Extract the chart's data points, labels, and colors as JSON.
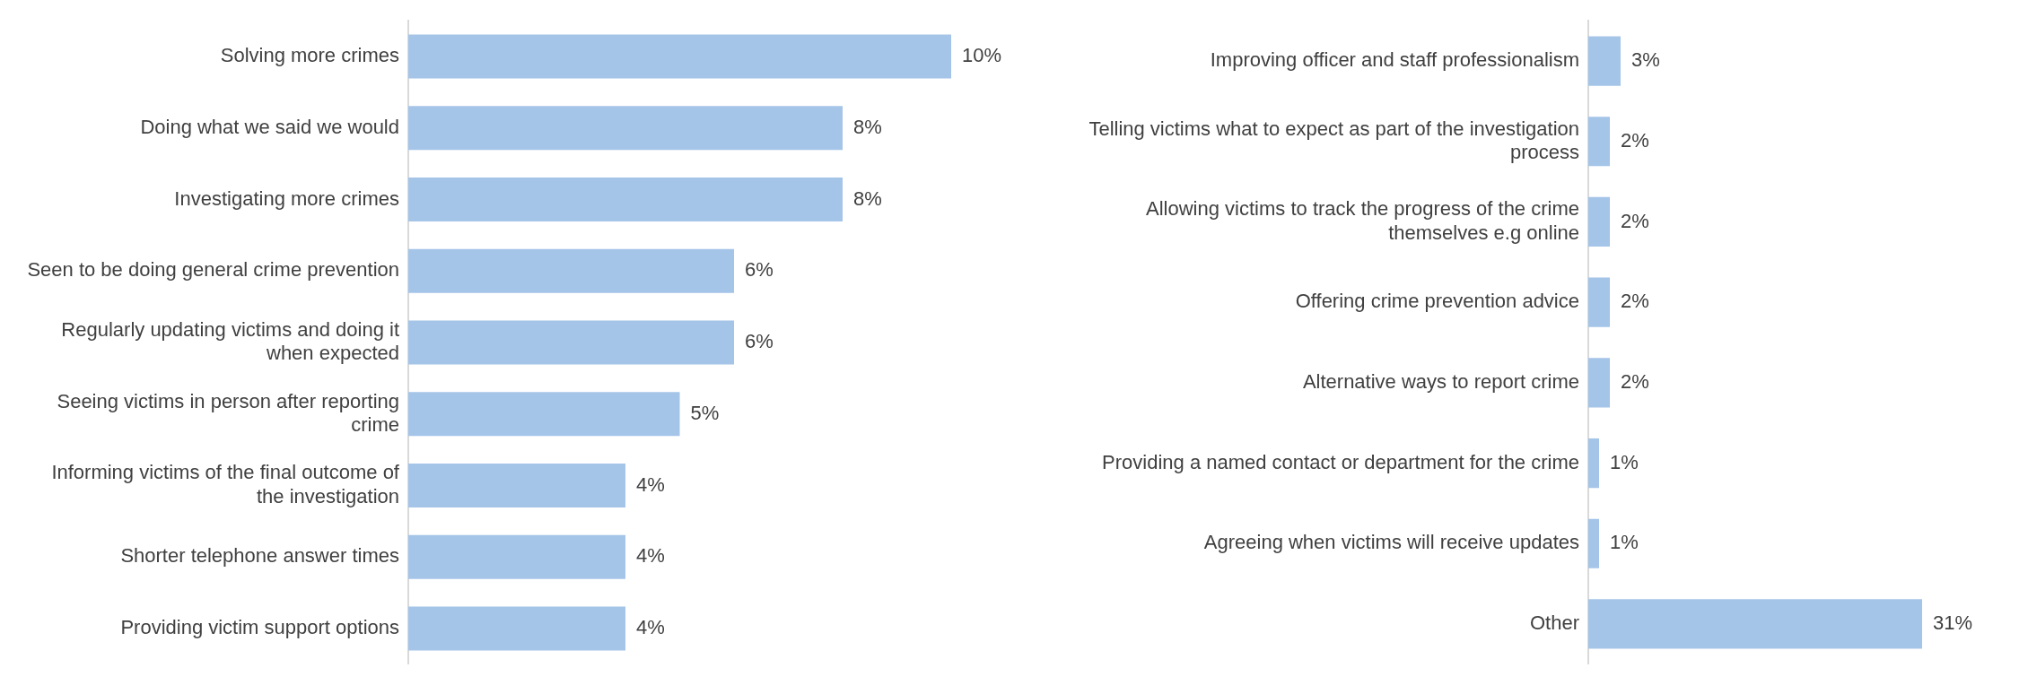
{
  "chart_data": [
    {
      "type": "bar",
      "orientation": "horizontal",
      "categories": [
        "Solving more crimes",
        "Doing what we said we would",
        "Investigating more crimes",
        "Seen to be doing general crime prevention",
        "Regularly updating victims and doing it when expected",
        "Seeing victims in person after reporting crime",
        "Informing victims of the final outcome of the investigation",
        "Shorter telephone answer times",
        "Providing victim support options"
      ],
      "values": [
        10,
        8,
        8,
        6,
        6,
        5,
        4,
        4,
        4
      ],
      "value_labels": [
        "10%",
        "8%",
        "8%",
        "6%",
        "6%",
        "5%",
        "4%",
        "4%",
        "4%"
      ],
      "color": "#a4c4e8",
      "grid": false,
      "legend": false,
      "tick_labels": "y"
    },
    {
      "type": "bar",
      "orientation": "horizontal",
      "categories": [
        "Improving officer and staff professionalism",
        "Telling victims what to expect as part of the investigation process",
        "Allowing victims to track the progress of the crime themselves e.g online",
        "Offering crime prevention advice",
        "Alternative ways to report crime",
        "Providing a named contact or department for the crime",
        "Agreeing when victims will receive updates",
        "Other"
      ],
      "values": [
        3,
        2,
        2,
        2,
        2,
        1,
        1,
        31
      ],
      "value_labels": [
        "3%",
        "2%",
        "2%",
        "2%",
        "2%",
        "1%",
        "1%",
        "31%"
      ],
      "color": "#a4c4e8",
      "grid": false,
      "legend": false,
      "tick_labels": "y"
    }
  ]
}
